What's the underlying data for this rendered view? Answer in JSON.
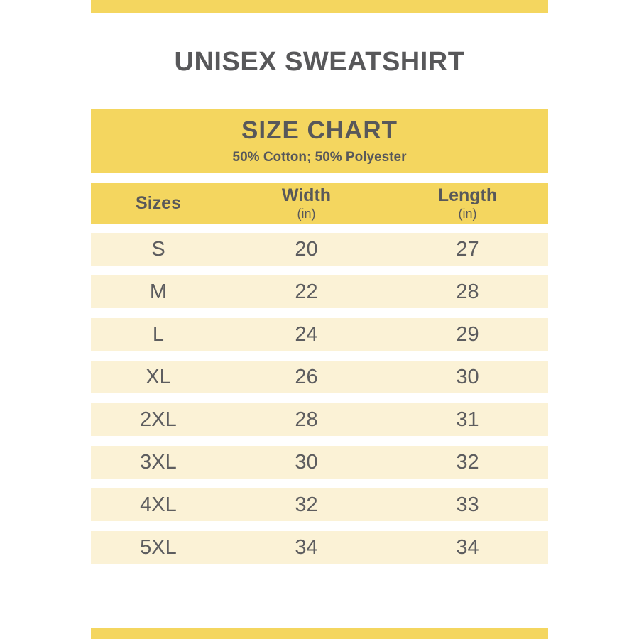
{
  "page": {
    "title": "UNISEX SWEATSHIRT"
  },
  "size_chart": {
    "heading": "SIZE CHART",
    "subheading": "50% Cotton; 50% Polyester",
    "columns": [
      {
        "label": "Sizes",
        "unit": ""
      },
      {
        "label": "Width",
        "unit": "(in)"
      },
      {
        "label": "Length",
        "unit": "(in)"
      }
    ],
    "rows": [
      {
        "size": "S",
        "width": "20",
        "length": "27"
      },
      {
        "size": "M",
        "width": "22",
        "length": "28"
      },
      {
        "size": "L",
        "width": "24",
        "length": "29"
      },
      {
        "size": "XL",
        "width": "26",
        "length": "30"
      },
      {
        "size": "2XL",
        "width": "28",
        "length": "31"
      },
      {
        "size": "3XL",
        "width": "30",
        "length": "32"
      },
      {
        "size": "4XL",
        "width": "32",
        "length": "33"
      },
      {
        "size": "5XL",
        "width": "34",
        "length": "34"
      }
    ]
  },
  "theme": {
    "colors": {
      "accent-yellow": "#f4d65f",
      "row-cream": "#fbf2d6",
      "text-dark": "#58585a",
      "text-cell": "#5d5d5f",
      "page-bg": "#ffffff"
    }
  }
}
